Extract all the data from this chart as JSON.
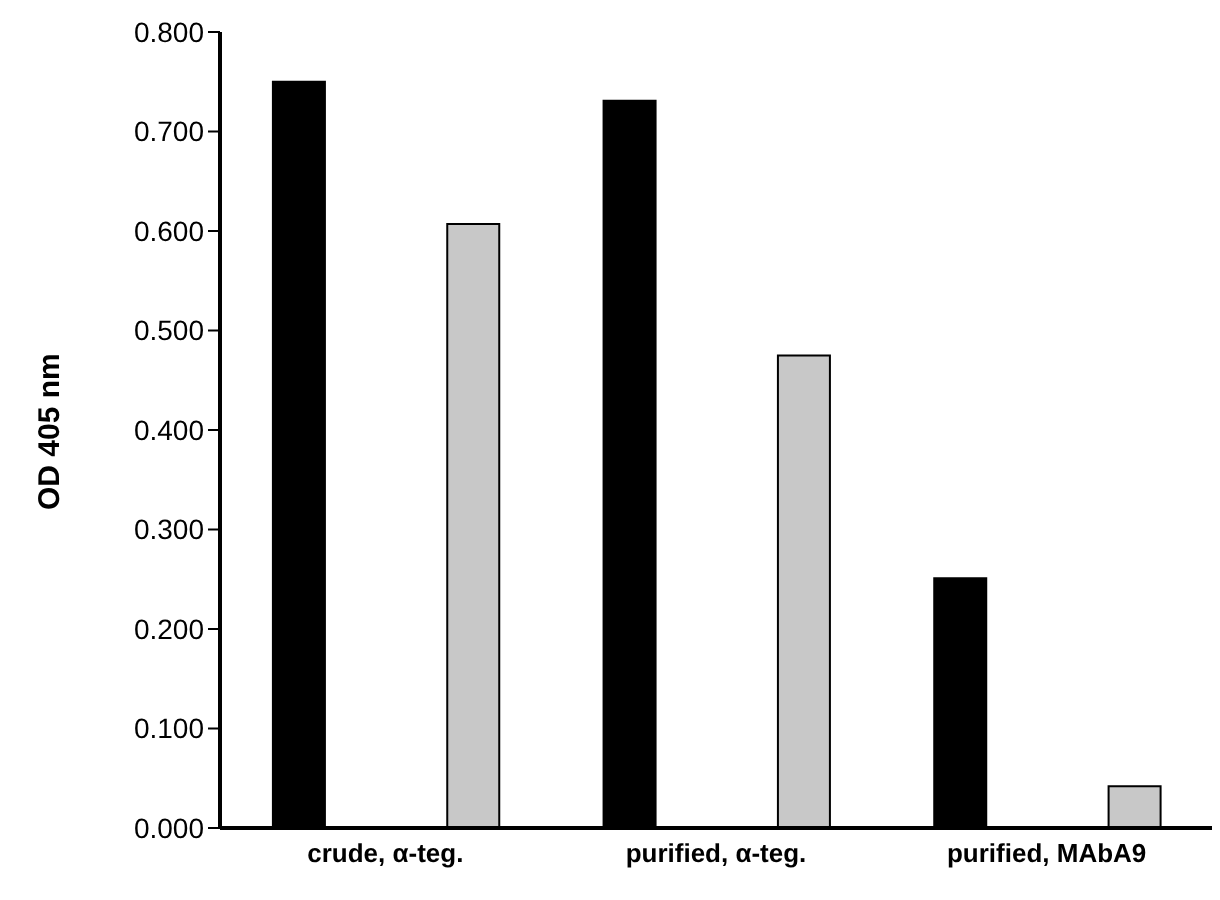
{
  "chart_data": {
    "type": "bar",
    "ylabel": "OD 405 nm",
    "categories": [
      "crude, α-teg.",
      "purified, α-teg.",
      "purified, MAbA9"
    ],
    "series": [
      {
        "color": "#000000",
        "values": [
          0.75,
          0.731,
          0.251
        ]
      },
      {
        "color": "#c8c8c8",
        "values": [
          0.607,
          0.475,
          0.042
        ]
      }
    ],
    "ylim": [
      0,
      0.8
    ],
    "yticks": [
      {
        "value": 0,
        "label": "0.000"
      },
      {
        "value": 0.1,
        "label": "0.100"
      },
      {
        "value": 0.2,
        "label": "0.200"
      },
      {
        "value": 0.3,
        "label": "0.300"
      },
      {
        "value": 0.4,
        "label": "0.400"
      },
      {
        "value": 0.5,
        "label": "0.500"
      },
      {
        "value": 0.6,
        "label": "0.600"
      },
      {
        "value": 0.7,
        "label": "0.700"
      },
      {
        "value": 0.8,
        "label": "0.800"
      }
    ],
    "grid": false,
    "legend": false
  }
}
